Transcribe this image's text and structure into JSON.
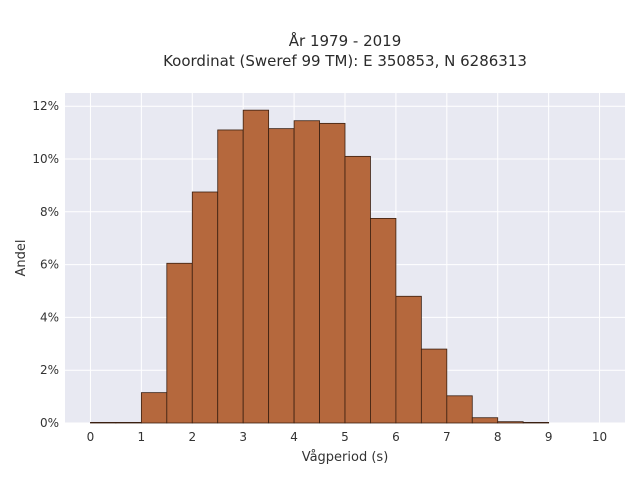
{
  "chart_data": {
    "type": "bar",
    "title_line1": "År 1979 - 2019",
    "title_line2": "Koordinat (Sweref 99 TM): E 350853, N 6286313",
    "xlabel": "Vågperiod (s)",
    "ylabel": "Andel",
    "x_ticks": [
      "0",
      "1",
      "2",
      "3",
      "4",
      "5",
      "6",
      "7",
      "8",
      "9",
      "10"
    ],
    "y_ticks": [
      "0%",
      "2%",
      "4%",
      "6%",
      "8%",
      "10%",
      "12%"
    ],
    "xlim": [
      -0.5,
      10.5
    ],
    "ylim": [
      0,
      12.5
    ],
    "bin_width": 0.5,
    "bins": [
      {
        "start": 0.0,
        "value": 0.02
      },
      {
        "start": 0.5,
        "value": 0.0
      },
      {
        "start": 1.0,
        "value": 1.15
      },
      {
        "start": 1.5,
        "value": 6.05
      },
      {
        "start": 2.0,
        "value": 8.75
      },
      {
        "start": 2.5,
        "value": 11.1
      },
      {
        "start": 3.0,
        "value": 11.85
      },
      {
        "start": 3.5,
        "value": 11.15
      },
      {
        "start": 4.0,
        "value": 11.45
      },
      {
        "start": 4.5,
        "value": 11.35
      },
      {
        "start": 5.0,
        "value": 10.1
      },
      {
        "start": 5.5,
        "value": 7.75
      },
      {
        "start": 6.0,
        "value": 4.8
      },
      {
        "start": 6.5,
        "value": 2.8
      },
      {
        "start": 7.0,
        "value": 1.03
      },
      {
        "start": 7.5,
        "value": 0.2
      },
      {
        "start": 8.0,
        "value": 0.05
      },
      {
        "start": 8.5,
        "value": 0.01
      }
    ],
    "grid": true,
    "colors": {
      "bar_fill": "#b5683d",
      "bar_edge": "#3a1f10",
      "plot_bg": "#e8e9f2",
      "grid": "#ffffff"
    }
  }
}
